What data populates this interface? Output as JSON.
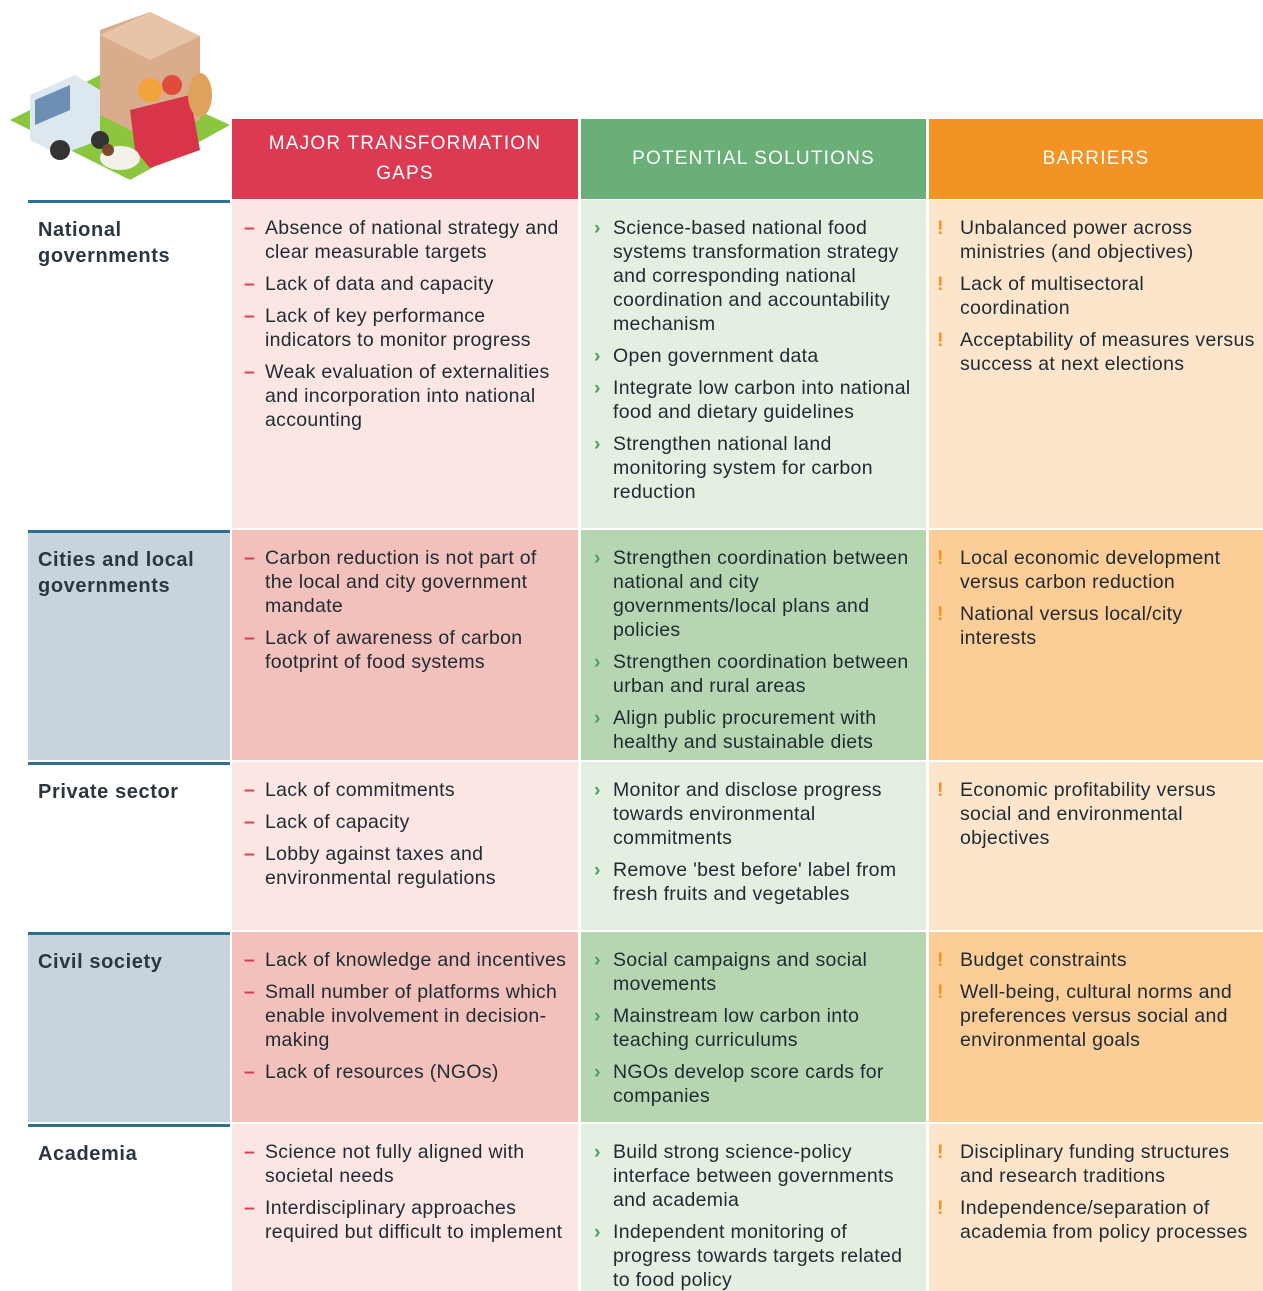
{
  "header": {
    "columns": [
      "Major transformation gaps",
      "Potential solutions",
      "Barriers"
    ]
  },
  "rows": [
    {
      "label": "National governments",
      "gaps": [
        "Absence of national strategy and clear measurable targets",
        "Lack of data and capacity",
        "Lack of key performance indicators to monitor progress",
        "Weak evaluation of externalities and incorporation into national accounting"
      ],
      "solutions": [
        "Science-based national food systems transformation strategy and corresponding national coordination and accountability mechanism",
        "Open government data",
        "Integrate low carbon into national food and dietary guidelines",
        "Strengthen national land monitoring system for carbon reduction"
      ],
      "barriers": [
        "Unbalanced power across ministries (and objectives)",
        "Lack of multisectoral coordination",
        "Acceptability of measures versus success at next elections"
      ]
    },
    {
      "label": "Cities and local governments",
      "gaps": [
        "Carbon reduction is not part of the local and city government mandate",
        "Lack of awareness of carbon footprint of food systems"
      ],
      "solutions": [
        "Strengthen coordination between national and city governments/local plans and policies",
        "Strengthen coordination between urban and rural areas",
        "Align public procurement with healthy and sustainable diets"
      ],
      "barriers": [
        "Local economic development versus carbon reduction",
        "National versus local/city interests"
      ]
    },
    {
      "label": "Private sector",
      "gaps": [
        "Lack of commitments",
        "Lack of capacity",
        "Lobby against taxes and environmental regulations"
      ],
      "solutions": [
        "Monitor and disclose progress towards environmental commitments",
        "Remove 'best before' label from fresh fruits and vegetables"
      ],
      "barriers": [
        "Economic profitability versus social and environmental objectives"
      ]
    },
    {
      "label": "Civil society",
      "gaps": [
        "Lack of knowledge and incentives",
        "Small number of platforms which enable involvement in decision-making",
        "Lack of resources (NGOs)"
      ],
      "solutions": [
        "Social campaigns and social movements",
        "Mainstream low carbon into teaching curriculums",
        "NGOs develop score cards for companies"
      ],
      "barriers": [
        "Budget constraints",
        "Well-being, cultural norms and preferences versus social and environmental goals"
      ]
    },
    {
      "label": "Academia",
      "gaps": [
        "Science not fully aligned with societal needs",
        "Interdisciplinary approaches required but difficult to implement"
      ],
      "solutions": [
        "Build strong science-policy interface between governments and academia",
        "Independent monitoring of progress towards targets related to food policy"
      ],
      "barriers": [
        "Disciplinary funding structures and research traditions",
        "Independence/separation of academia from policy processes"
      ]
    }
  ]
}
